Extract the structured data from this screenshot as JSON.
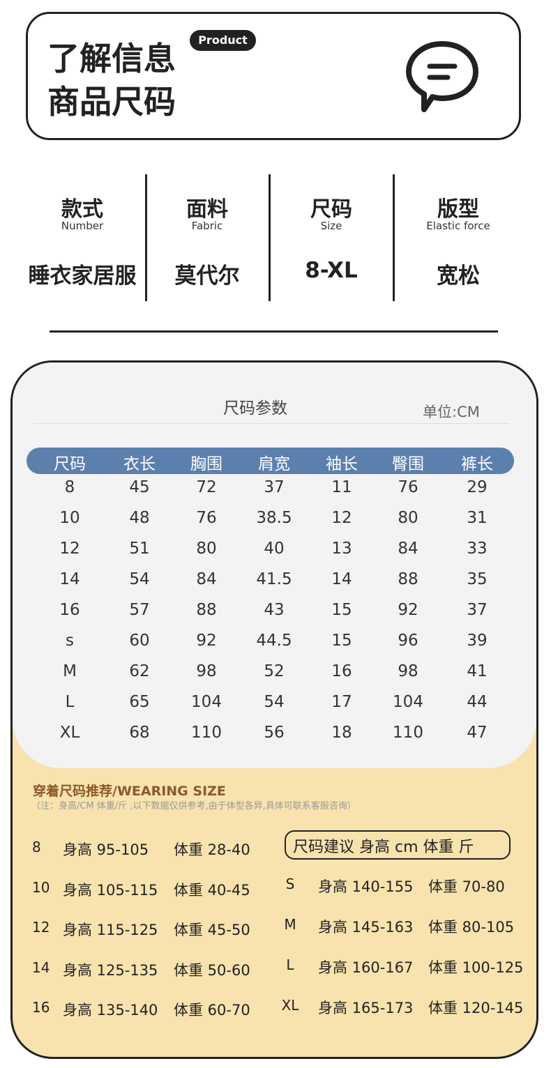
{
  "header": {
    "title_line1": "了解信息",
    "title_line2": "商品尺码",
    "badge": "Product"
  },
  "info": [
    {
      "label": "款式",
      "english": "Number",
      "value": "睡衣家居服"
    },
    {
      "label": "面料",
      "english": "Fabric",
      "value": "莫代尔"
    },
    {
      "label": "尺码",
      "english": "Size",
      "value": "8-XL"
    },
    {
      "label": "版型",
      "english": "Elastic force",
      "value": "宽松"
    }
  ],
  "size_table": {
    "title": "尺码参数",
    "unit": "单位:CM",
    "columns": [
      "尺码",
      "衣长",
      "胸围",
      "肩宽",
      "袖长",
      "臀围",
      "裤长"
    ],
    "rows": [
      [
        "8",
        "45",
        "72",
        "37",
        "11",
        "76",
        "29"
      ],
      [
        "10",
        "48",
        "76",
        "38.5",
        "12",
        "80",
        "31"
      ],
      [
        "12",
        "51",
        "80",
        "40",
        "13",
        "84",
        "33"
      ],
      [
        "14",
        "54",
        "84",
        "41.5",
        "14",
        "88",
        "35"
      ],
      [
        "16",
        "57",
        "88",
        "43",
        "15",
        "92",
        "37"
      ],
      [
        "s",
        "60",
        "92",
        "44.5",
        "15",
        "96",
        "39"
      ],
      [
        "M",
        "62",
        "98",
        "52",
        "16",
        "98",
        "41"
      ],
      [
        "L",
        "65",
        "104",
        "54",
        "17",
        "104",
        "44"
      ],
      [
        "XL",
        "68",
        "110",
        "56",
        "18",
        "110",
        "47"
      ]
    ]
  },
  "wearing": {
    "title": "穿着尺码推荐/WEARING SIZE",
    "note": "（注：身高/CM 体重/斤 ,以下数据仅供参考,由于体型各异,具体可联系客服咨询）",
    "left_rows": [
      [
        "8",
        "身高 95-105",
        "体重 28-40"
      ],
      [
        "10",
        "身高 105-115",
        "体重 40-45"
      ],
      [
        "12",
        "身高 115-125",
        "体重 45-50"
      ],
      [
        "14",
        "身高 125-135",
        "体重 50-60"
      ],
      [
        "16",
        "身高 135-140",
        "体重 60-70"
      ]
    ],
    "suggest_box": "尺码建议 身高 cm 体重 斤",
    "right_rows": [
      [
        "S",
        "身高 140-155",
        "体重 70-80"
      ],
      [
        "M",
        "身高 145-163",
        "体重 80-105"
      ],
      [
        "L",
        "身高 160-167",
        "体重 100-125"
      ],
      [
        "XL",
        "身高 165-173",
        "体重 120-145"
      ]
    ]
  }
}
